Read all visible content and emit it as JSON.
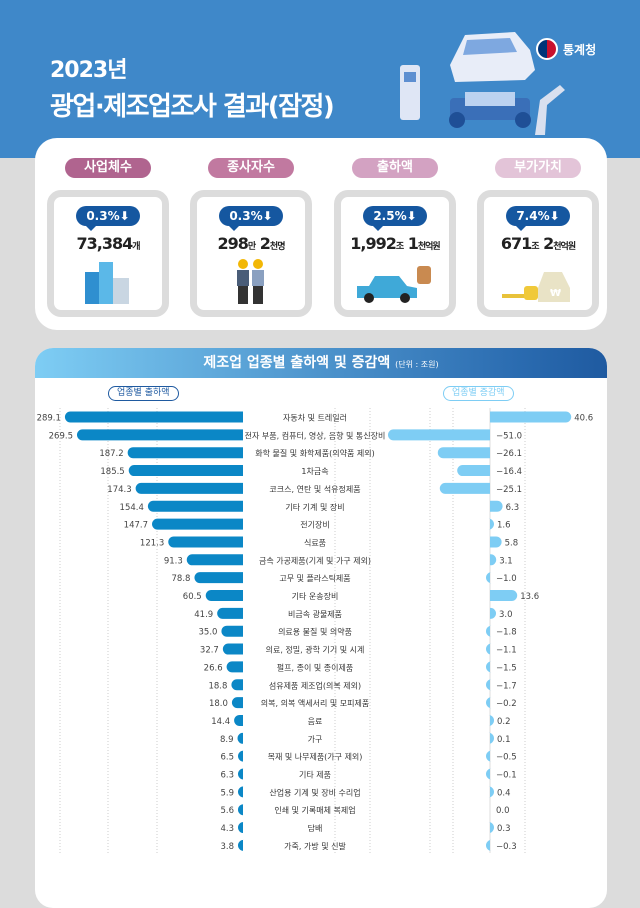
{
  "header": {
    "year": "2023년",
    "title": "광업·제조업조사 결과(잠정)",
    "org": "통계청"
  },
  "stats": [
    {
      "label": "사업체수",
      "change": "0.3%⬇",
      "value": "73,384",
      "unit": "개",
      "color": "#b0648f",
      "icon": "buildings-icon"
    },
    {
      "label": "종사자수",
      "change": "0.3%⬇",
      "value": "298",
      "unit": "만",
      "value2": "2",
      "unit2": "천명",
      "color": "#c179a0",
      "icon": "workers-icon"
    },
    {
      "label": "출하액",
      "change": "2.5%⬇",
      "value": "1,992",
      "unit": "조",
      "value2": "1",
      "unit2": "천억원",
      "color": "#d3a2c2",
      "icon": "car-bread-icon"
    },
    {
      "label": "부가가치",
      "change": "7.4%⬇",
      "value": "671",
      "unit": "조",
      "value2": "2",
      "unit2": "천억원",
      "color": "#e3c4d8",
      "icon": "money-bag-icon"
    }
  ],
  "chart_data": {
    "type": "bar",
    "orientation": "horizontal-diverging",
    "title": "제조업 업종별 출하액 및 증감액",
    "unit_note": "(단위 : 조원)",
    "categories": [
      "자동차 및 트레일러",
      "전자 부품, 컴퓨터, 영상, 음향 및 통신장비",
      "화학 물질 및 화학제품(의약품 제외)",
      "1차금속",
      "코크스, 연탄 및 석유정제품",
      "기타 기계 및 장비",
      "전기장비",
      "식료품",
      "금속 가공제품(기계 및 가구 제외)",
      "고무 및 플라스틱제품",
      "기타 운송장비",
      "비금속 광물제품",
      "의료용 물질 및 의약품",
      "의료, 정밀, 광학 기기 및 시계",
      "펄프, 종이 및 종이제품",
      "섬유제품 제조업(의복 제외)",
      "의복, 의복 액세서리 및 모피제품",
      "음료",
      "가구",
      "목재 및 나무제품(가구 제외)",
      "기타 제품",
      "산업용 기계 및 장비 수리업",
      "인쇄 및 기록매체 복제업",
      "담배",
      "가죽, 가방 및 신발"
    ],
    "series": [
      {
        "name": "업종별 출하액",
        "color": "#0b87c6",
        "values": [
          289.1,
          269.5,
          187.2,
          185.5,
          174.3,
          154.4,
          147.7,
          121.3,
          91.3,
          78.8,
          60.5,
          41.9,
          35.0,
          32.7,
          26.6,
          18.8,
          18.0,
          14.4,
          8.9,
          6.5,
          6.3,
          5.9,
          5.6,
          4.3,
          3.8
        ]
      },
      {
        "name": "업종별 증감액",
        "color": "#7ecdf4",
        "values": [
          40.6,
          -51.0,
          -26.1,
          -16.4,
          -25.1,
          6.3,
          1.6,
          5.8,
          3.1,
          -1.0,
          13.6,
          3.0,
          -1.8,
          -1.1,
          -1.5,
          -1.7,
          -0.2,
          0.2,
          0.1,
          -0.5,
          -0.1,
          0.4,
          0.0,
          0.3,
          -0.3
        ]
      }
    ],
    "grid": "dotted vertical"
  }
}
